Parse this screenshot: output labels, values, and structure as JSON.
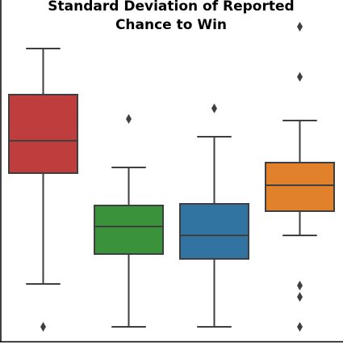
{
  "chart_data": {
    "type": "box",
    "title": [
      "Standard Deviation of Reported",
      "Chance to Win"
    ],
    "ylim": [
      0,
      422
    ],
    "boxes": [
      {
        "color": "#c03d3e",
        "whislo": 71,
        "q1": 208,
        "med": 248,
        "q3": 305,
        "whishi": 362,
        "fliers": [
          18
        ]
      },
      {
        "color": "#3a923a",
        "whislo": 18,
        "q1": 108,
        "med": 142,
        "q3": 168,
        "whishi": 215,
        "fliers": [
          275
        ]
      },
      {
        "color": "#3274a1",
        "whislo": 18,
        "q1": 102,
        "med": 131,
        "q3": 170,
        "whishi": 253,
        "fliers": [
          288
        ]
      },
      {
        "color": "#e1812c",
        "whislo": 131,
        "q1": 161,
        "med": 193,
        "q3": 221,
        "whishi": 273,
        "fliers": [
          389,
          327,
          69,
          55,
          18
        ]
      }
    ]
  }
}
